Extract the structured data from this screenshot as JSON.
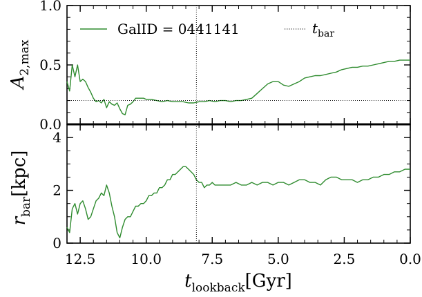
{
  "legend": {
    "series_label": "GalID = 0441141",
    "tbar_label": "t",
    "tbar_sub": "bar"
  },
  "colors": {
    "series": "#2e8b2e",
    "axes": "#000000",
    "reference": "#000000"
  },
  "chart_data": [
    {
      "type": "line",
      "title": "",
      "xlabel": "t_lookback [Gyr]",
      "ylabel": "A_2,max",
      "xlim": [
        13.0,
        0.0
      ],
      "ylim": [
        0.0,
        1.0
      ],
      "x_inverted": true,
      "yticks": [
        "0.0",
        "0.5",
        "1.0"
      ],
      "legend_position": "top",
      "series": [
        {
          "name": "GalID = 0441141",
          "x": [
            13.0,
            12.9,
            12.8,
            12.7,
            12.6,
            12.5,
            12.4,
            12.3,
            12.2,
            12.1,
            12.0,
            11.9,
            11.8,
            11.7,
            11.6,
            11.5,
            11.4,
            11.3,
            11.2,
            11.1,
            11.0,
            10.9,
            10.8,
            10.7,
            10.6,
            10.5,
            10.4,
            10.3,
            10.2,
            10.1,
            10.0,
            9.8,
            9.6,
            9.4,
            9.2,
            9.0,
            8.8,
            8.6,
            8.4,
            8.2,
            8.0,
            7.8,
            7.6,
            7.4,
            7.2,
            7.0,
            6.8,
            6.6,
            6.4,
            6.2,
            6.0,
            5.8,
            5.6,
            5.4,
            5.2,
            5.0,
            4.8,
            4.6,
            4.4,
            4.2,
            4.0,
            3.8,
            3.6,
            3.4,
            3.2,
            3.0,
            2.8,
            2.6,
            2.4,
            2.2,
            2.0,
            1.8,
            1.6,
            1.4,
            1.2,
            1.0,
            0.8,
            0.6,
            0.4,
            0.2,
            0.0
          ],
          "values": [
            0.36,
            0.28,
            0.5,
            0.4,
            0.5,
            0.36,
            0.38,
            0.36,
            0.31,
            0.27,
            0.22,
            0.19,
            0.2,
            0.18,
            0.21,
            0.14,
            0.19,
            0.17,
            0.16,
            0.18,
            0.13,
            0.09,
            0.08,
            0.16,
            0.17,
            0.19,
            0.22,
            0.22,
            0.22,
            0.22,
            0.21,
            0.21,
            0.2,
            0.19,
            0.2,
            0.19,
            0.19,
            0.19,
            0.18,
            0.18,
            0.19,
            0.19,
            0.2,
            0.19,
            0.2,
            0.2,
            0.19,
            0.2,
            0.2,
            0.21,
            0.22,
            0.26,
            0.3,
            0.34,
            0.36,
            0.36,
            0.33,
            0.32,
            0.34,
            0.36,
            0.39,
            0.4,
            0.41,
            0.41,
            0.42,
            0.43,
            0.44,
            0.46,
            0.47,
            0.48,
            0.48,
            0.49,
            0.49,
            0.5,
            0.51,
            0.52,
            0.53,
            0.53,
            0.54,
            0.54,
            0.54
          ]
        },
        {
          "name": "",
          "style": "dotted",
          "x": [
            13.0,
            0.0
          ],
          "values": [
            0.2,
            0.2
          ]
        }
      ],
      "vline": {
        "x": 8.1,
        "style": "dotted",
        "name": "t_bar"
      }
    },
    {
      "type": "line",
      "title": "",
      "xlabel": "t_lookback [Gyr]",
      "ylabel": "r_bar [kpc]",
      "xlim": [
        13.0,
        0.0
      ],
      "ylim": [
        0.0,
        4.5
      ],
      "x_inverted": true,
      "xticks": [
        "12.5",
        "10.0",
        "7.5",
        "5.0",
        "2.5",
        "0.0"
      ],
      "yticks": [
        "0",
        "2",
        "4"
      ],
      "series": [
        {
          "name": "GalID = 0441141",
          "x": [
            13.0,
            12.9,
            12.8,
            12.7,
            12.6,
            12.5,
            12.4,
            12.3,
            12.2,
            12.1,
            12.0,
            11.9,
            11.8,
            11.7,
            11.6,
            11.5,
            11.4,
            11.3,
            11.2,
            11.1,
            11.0,
            10.9,
            10.8,
            10.7,
            10.6,
            10.5,
            10.4,
            10.3,
            10.2,
            10.1,
            10.0,
            9.9,
            9.8,
            9.7,
            9.6,
            9.5,
            9.4,
            9.3,
            9.2,
            9.1,
            9.0,
            8.9,
            8.8,
            8.7,
            8.6,
            8.5,
            8.4,
            8.3,
            8.2,
            8.1,
            8.0,
            7.9,
            7.8,
            7.7,
            7.6,
            7.5,
            7.4,
            7.2,
            7.0,
            6.8,
            6.6,
            6.4,
            6.2,
            6.0,
            5.8,
            5.6,
            5.4,
            5.2,
            5.0,
            4.8,
            4.6,
            4.4,
            4.2,
            4.0,
            3.8,
            3.6,
            3.4,
            3.2,
            3.0,
            2.8,
            2.6,
            2.4,
            2.2,
            2.0,
            1.8,
            1.6,
            1.4,
            1.2,
            1.0,
            0.8,
            0.6,
            0.4,
            0.2,
            0.0
          ],
          "values": [
            0.6,
            0.4,
            1.3,
            1.5,
            1.1,
            1.5,
            1.6,
            1.3,
            0.9,
            1.0,
            1.3,
            1.6,
            1.7,
            1.9,
            1.8,
            2.2,
            1.9,
            1.4,
            1.0,
            0.4,
            0.2,
            0.6,
            0.9,
            1.0,
            1.0,
            1.2,
            1.4,
            1.4,
            1.5,
            1.5,
            1.6,
            1.8,
            1.8,
            1.9,
            1.9,
            2.1,
            2.1,
            2.2,
            2.4,
            2.4,
            2.6,
            2.6,
            2.7,
            2.8,
            2.9,
            2.9,
            2.8,
            2.7,
            2.6,
            2.4,
            2.3,
            2.3,
            2.1,
            2.2,
            2.2,
            2.3,
            2.2,
            2.2,
            2.2,
            2.2,
            2.3,
            2.2,
            2.2,
            2.3,
            2.2,
            2.3,
            2.3,
            2.2,
            2.3,
            2.3,
            2.2,
            2.3,
            2.4,
            2.4,
            2.3,
            2.3,
            2.2,
            2.4,
            2.5,
            2.5,
            2.4,
            2.4,
            2.4,
            2.3,
            2.4,
            2.4,
            2.5,
            2.5,
            2.6,
            2.6,
            2.7,
            2.7,
            2.8,
            2.8
          ]
        }
      ],
      "vline": {
        "x": 8.1,
        "style": "dotted",
        "name": "t_bar"
      }
    }
  ]
}
